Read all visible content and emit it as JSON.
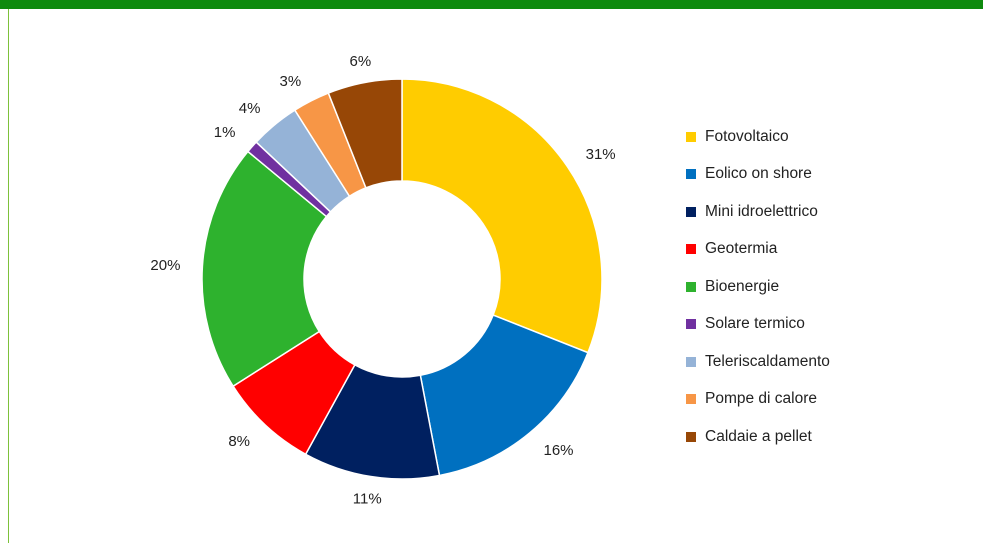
{
  "colors": {
    "top_bar": "#0e8a0e",
    "frame_line": "#7dc13a"
  },
  "chart_data": {
    "type": "pie",
    "donut": true,
    "title": "",
    "legend_position": "right",
    "slices": [
      {
        "label": "Fotovoltaico",
        "value": 31,
        "value_label": "31%",
        "color": "#ffcc00"
      },
      {
        "label": "Eolico on shore",
        "value": 16,
        "value_label": "16%",
        "color": "#0070c0"
      },
      {
        "label": "Mini idroelettrico",
        "value": 11,
        "value_label": "11%",
        "color": "#002060"
      },
      {
        "label": "Geotermia",
        "value": 8,
        "value_label": "8%",
        "color": "#ff0000"
      },
      {
        "label": "Bioenergie",
        "value": 20,
        "value_label": "20%",
        "color": "#2eb22e"
      },
      {
        "label": "Solare termico",
        "value": 1,
        "value_label": "1%",
        "color": "#7030a0"
      },
      {
        "label": "Teleriscaldamento",
        "value": 4,
        "value_label": "4%",
        "color": "#95b3d7"
      },
      {
        "label": "Pompe di calore",
        "value": 3,
        "value_label": "3%",
        "color": "#f79646"
      },
      {
        "label": "Caldaie a pellet",
        "value": 6,
        "value_label": "6%",
        "color": "#974706"
      }
    ]
  }
}
